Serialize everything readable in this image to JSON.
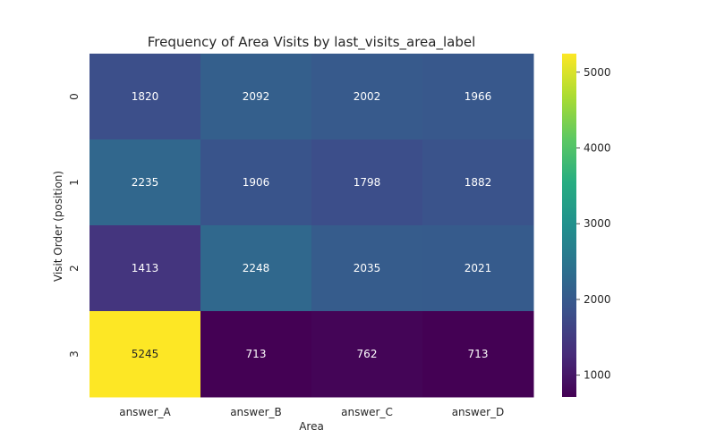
{
  "chart_data": {
    "type": "heatmap",
    "title": "Frequency of Area Visits by last_visits_area_label",
    "xlabel": "Area",
    "ylabel": "Visit Order (position)",
    "x_categories": [
      "answer_A",
      "answer_B",
      "answer_C",
      "answer_D"
    ],
    "y_categories": [
      "0",
      "1",
      "2",
      "3"
    ],
    "values": [
      [
        1820,
        2092,
        2002,
        1966
      ],
      [
        2235,
        1906,
        1798,
        1882
      ],
      [
        1413,
        2248,
        2035,
        2021
      ],
      [
        5245,
        713,
        762,
        713
      ]
    ],
    "colorbar": {
      "colormap": "viridis",
      "range": [
        713,
        5245
      ],
      "ticks": [
        1000,
        2000,
        3000,
        4000,
        5000
      ]
    },
    "grid": false
  }
}
